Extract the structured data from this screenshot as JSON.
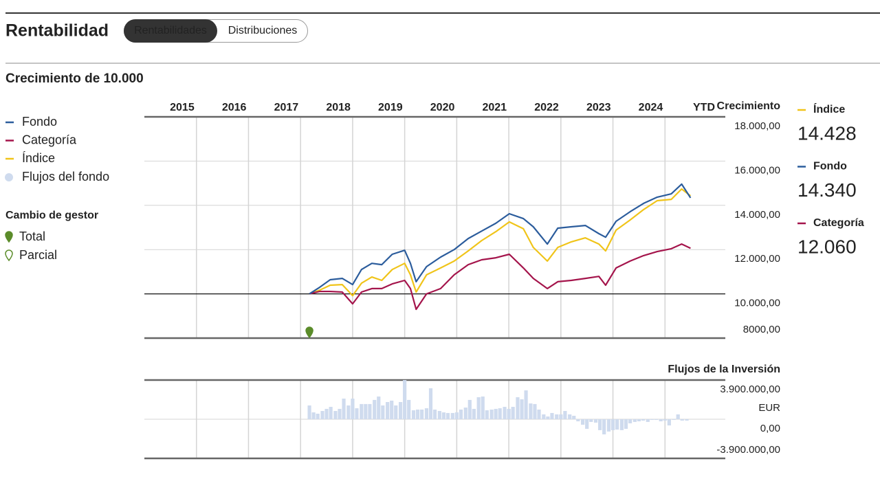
{
  "header": {
    "title": "Rentabilidad",
    "tabs": [
      "Rentabilidades",
      "Distribuciones"
    ],
    "active_tab": 0
  },
  "section_title": "Crecimiento de 10.000",
  "chart_data": [
    {
      "type": "line",
      "y_title": "Crecimiento",
      "periods": [
        "2015",
        "2016",
        "2017",
        "2018",
        "2019",
        "2020",
        "2021",
        "2022",
        "2023",
        "2024",
        "YTD"
      ],
      "xlim": [
        2015,
        2026
      ],
      "xticks": [
        2016,
        2017,
        2018,
        2019,
        2020,
        2021,
        2022,
        2023,
        2024,
        2025
      ],
      "ylim": [
        8000,
        18000
      ],
      "yticks": [
        {
          "value": 8000,
          "label": "8000,00"
        },
        {
          "value": 10000,
          "label": "10.000,00"
        },
        {
          "value": 12000,
          "label": "12.000,00"
        },
        {
          "value": 14000,
          "label": "14.000,00"
        },
        {
          "value": 16000,
          "label": "16.000,00"
        },
        {
          "value": 18000,
          "label": "18.000,00"
        }
      ],
      "baseline": 10000,
      "grid": true,
      "x": [
        2018.17,
        2018.37,
        2018.57,
        2018.8,
        2019.0,
        2019.17,
        2019.37,
        2019.56,
        2019.76,
        2020.0,
        2020.11,
        2020.22,
        2020.42,
        2020.69,
        2020.95,
        2021.22,
        2021.48,
        2021.75,
        2022.01,
        2022.28,
        2022.47,
        2022.74,
        2022.94,
        2023.2,
        2023.47,
        2023.73,
        2023.86,
        2024.06,
        2024.33,
        2024.59,
        2024.85,
        2025.12,
        2025.32,
        2025.49
      ],
      "series": [
        {
          "name": "Fondo",
          "color": "#2b5c9c",
          "values": [
            10000,
            10300,
            10640,
            10700,
            10420,
            11100,
            11380,
            11320,
            11790,
            11970,
            11380,
            10550,
            11230,
            11660,
            12000,
            12500,
            12840,
            13190,
            13620,
            13400,
            13030,
            12250,
            12970,
            13030,
            13090,
            12720,
            12560,
            13280,
            13710,
            14090,
            14370,
            14520,
            14960,
            14340
          ]
        },
        {
          "name": "Categoría",
          "color": "#a4144b",
          "values": [
            10000,
            10110,
            10110,
            10080,
            9550,
            10080,
            10240,
            10240,
            10450,
            10610,
            10240,
            9300,
            10000,
            10240,
            10860,
            11320,
            11540,
            11630,
            11790,
            11170,
            10700,
            10240,
            10550,
            10610,
            10700,
            10790,
            10390,
            11170,
            11480,
            11730,
            11910,
            12040,
            12250,
            12060
          ]
        },
        {
          "name": "Índice",
          "color": "#f0c419",
          "values": [
            10000,
            10170,
            10390,
            10420,
            9920,
            10480,
            10760,
            10610,
            11100,
            11380,
            10860,
            10080,
            10860,
            11170,
            11480,
            11940,
            12410,
            12810,
            13250,
            12940,
            12100,
            11480,
            12100,
            12350,
            12530,
            12250,
            11940,
            12880,
            13340,
            13810,
            14210,
            14270,
            14740,
            14428
          ]
        }
      ],
      "manager_change": {
        "title": "Cambio de gestor",
        "legend": [
          "Total",
          "Parcial"
        ],
        "color": "#5b8c2a",
        "total_x": [
          2018.17
        ]
      },
      "summary": [
        {
          "name": "Índice",
          "color": "#f0c419",
          "value": 14428,
          "value_label": "14.428"
        },
        {
          "name": "Fondo",
          "color": "#2b5c9c",
          "value": 14340,
          "value_label": "14.340"
        },
        {
          "name": "Categoría",
          "color": "#a4144b",
          "value": 12060,
          "value_label": "12.060"
        }
      ]
    },
    {
      "type": "bar",
      "title": "Flujos de la Inversión",
      "y_unit": "EUR",
      "xlim": [
        2015,
        2026
      ],
      "xticks": [
        2016,
        2017,
        2018,
        2019,
        2020,
        2021,
        2022,
        2023,
        2024,
        2025
      ],
      "ylim": [
        -3900000,
        3900000
      ],
      "yticks": [
        {
          "value": -3900000,
          "label": "-3.900.000,00"
        },
        {
          "value": 0,
          "label": "0,00"
        },
        {
          "value": 3900000,
          "label": "3.900.000,00"
        }
      ],
      "grid": true,
      "x": [
        2018.17,
        2018.25,
        2018.33,
        2018.42,
        2018.5,
        2018.58,
        2018.67,
        2018.75,
        2018.83,
        2018.92,
        2019.0,
        2019.08,
        2019.17,
        2019.25,
        2019.33,
        2019.42,
        2019.5,
        2019.58,
        2019.67,
        2019.75,
        2019.83,
        2019.92,
        2020.0,
        2020.08,
        2020.17,
        2020.25,
        2020.33,
        2020.42,
        2020.5,
        2020.58,
        2020.67,
        2020.75,
        2020.83,
        2020.92,
        2021.0,
        2021.08,
        2021.17,
        2021.25,
        2021.33,
        2021.42,
        2021.5,
        2021.58,
        2021.67,
        2021.75,
        2021.83,
        2021.92,
        2022.0,
        2022.08,
        2022.17,
        2022.25,
        2022.33,
        2022.42,
        2022.5,
        2022.58,
        2022.67,
        2022.75,
        2022.83,
        2022.92,
        2023.0,
        2023.08,
        2023.17,
        2023.25,
        2023.33,
        2023.42,
        2023.5,
        2023.58,
        2023.67,
        2023.75,
        2023.83,
        2023.92,
        2024.0,
        2024.08,
        2024.17,
        2024.25,
        2024.33,
        2024.42,
        2024.5,
        2024.58,
        2024.67,
        2024.75,
        2024.83,
        2024.92,
        2025.0,
        2025.08,
        2025.17,
        2025.25,
        2025.33,
        2025.42
      ],
      "series": [
        {
          "name": "Flujos del fondo",
          "color": "#cfdbee",
          "values": [
            1370000,
            680000,
            550000,
            820000,
            1030000,
            1230000,
            820000,
            1030000,
            2050000,
            1370000,
            2050000,
            1090000,
            1510000,
            1510000,
            1510000,
            1920000,
            2260000,
            1370000,
            1710000,
            1850000,
            1370000,
            1710000,
            3900000,
            1920000,
            890000,
            960000,
            960000,
            1090000,
            3080000,
            960000,
            820000,
            680000,
            620000,
            620000,
            680000,
            960000,
            1160000,
            1920000,
            1030000,
            2190000,
            2260000,
            890000,
            960000,
            1030000,
            1090000,
            1230000,
            1030000,
            1230000,
            2190000,
            1980000,
            2870000,
            1570000,
            1510000,
            960000,
            480000,
            270000,
            620000,
            480000,
            480000,
            820000,
            480000,
            340000,
            -210000,
            -550000,
            -960000,
            -270000,
            -340000,
            -1090000,
            -1510000,
            -1230000,
            -1090000,
            -1030000,
            -1090000,
            -960000,
            -410000,
            -270000,
            -210000,
            -140000,
            -270000,
            -70000,
            -70000,
            -210000,
            -140000,
            -620000,
            -70000,
            480000,
            -140000,
            -140000
          ]
        }
      ]
    }
  ]
}
